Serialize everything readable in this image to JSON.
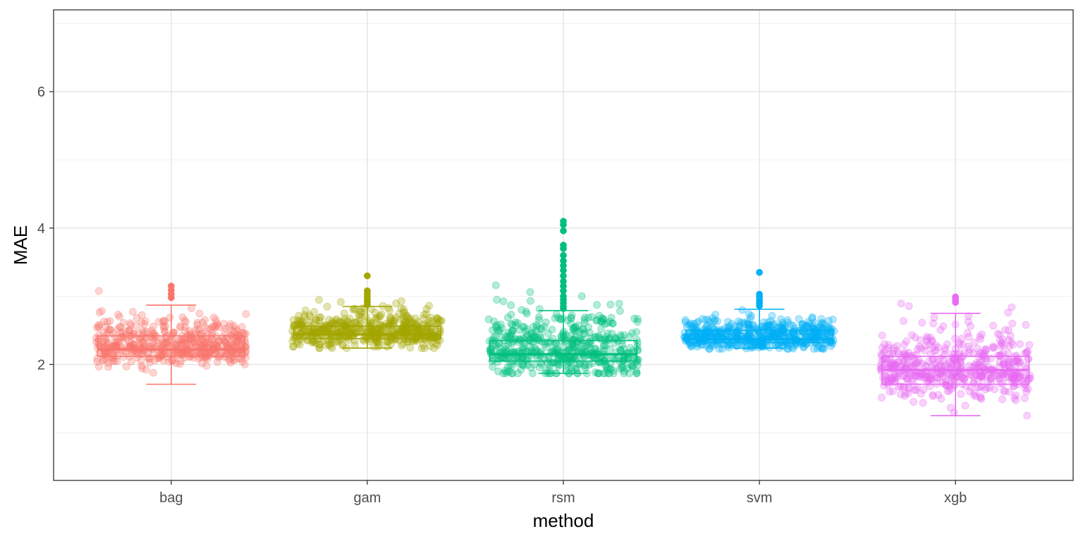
{
  "chart_data": {
    "type": "box",
    "xlabel": "method",
    "ylabel": "MAE",
    "ylim": [
      0.3,
      7.2
    ],
    "y_ticks": [
      2,
      4,
      6
    ],
    "y_minor_gridlines": [
      1,
      3,
      5,
      7
    ],
    "grid": true,
    "legend": "none",
    "categories": [
      "bag",
      "gam",
      "rsm",
      "svm",
      "xgb"
    ],
    "series": [
      {
        "category": "bag",
        "color": "#F8766D",
        "whisker_low": 1.71,
        "q1": 2.12,
        "median": 2.22,
        "q3": 2.42,
        "whisker_high": 2.87,
        "outliers": [
          3.15,
          3.09,
          3.03,
          2.98
        ],
        "jitter_range": [
          1.72,
          3.14
        ],
        "jitter_center": 2.27,
        "jitter_sd": 0.2
      },
      {
        "category": "gam",
        "color": "#A3A500",
        "whisker_low": 2.24,
        "q1": 2.38,
        "median": 2.44,
        "q3": 2.56,
        "whisker_high": 2.85,
        "outliers": [
          3.3,
          3.08,
          3.04,
          3.0,
          2.96,
          2.92,
          2.88
        ],
        "jitter_range": [
          2.24,
          3.3
        ],
        "jitter_center": 2.48,
        "jitter_sd": 0.15
      },
      {
        "category": "rsm",
        "color": "#00BF7D",
        "whisker_low": 1.87,
        "q1": 2.05,
        "median": 2.15,
        "q3": 2.35,
        "whisker_high": 2.79,
        "outliers": [
          4.1,
          4.05,
          3.96,
          3.75,
          3.7,
          3.6,
          3.52,
          3.45,
          3.38,
          3.3,
          3.22,
          3.15,
          3.08,
          3.0,
          2.95,
          2.9,
          2.85,
          2.82
        ],
        "jitter_range": [
          1.87,
          4.1
        ],
        "jitter_center": 2.2,
        "jitter_sd": 0.3
      },
      {
        "category": "svm",
        "color": "#00B0F6",
        "whisker_low": 2.24,
        "q1": 2.32,
        "median": 2.37,
        "q3": 2.5,
        "whisker_high": 2.81,
        "outliers": [
          3.35,
          3.03,
          2.99,
          2.94,
          2.9,
          2.86
        ],
        "jitter_range": [
          2.23,
          3.35
        ],
        "jitter_center": 2.41,
        "jitter_sd": 0.13
      },
      {
        "category": "xgb",
        "color": "#E76BF3",
        "whisker_low": 1.25,
        "q1": 1.71,
        "median": 1.92,
        "q3": 2.12,
        "whisker_high": 2.75,
        "outliers": [
          2.99,
          2.95,
          2.91
        ],
        "jitter_range": [
          1.25,
          2.99
        ],
        "jitter_center": 1.93,
        "jitter_sd": 0.3
      }
    ]
  }
}
